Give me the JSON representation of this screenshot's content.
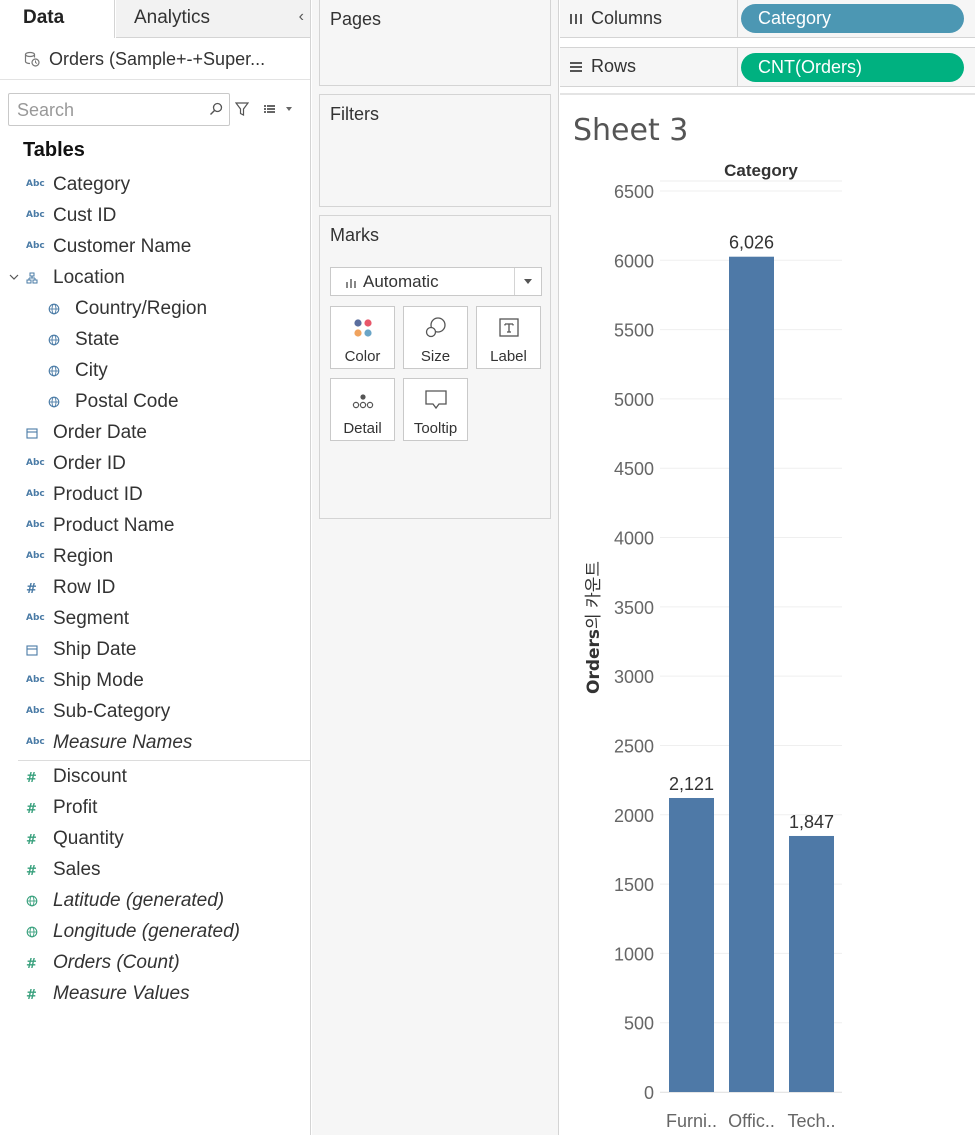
{
  "tabs": {
    "data": "Data",
    "analytics": "Analytics"
  },
  "datasource": {
    "label": "Orders (Sample+-+Super..."
  },
  "search": {
    "placeholder": "Search"
  },
  "tables_heading": "Tables",
  "dimensions": [
    {
      "name": "Category",
      "type": "Abc",
      "indent": 0
    },
    {
      "name": "Cust ID",
      "type": "Abc",
      "indent": 0
    },
    {
      "name": "Customer Name",
      "type": "Abc",
      "indent": 0
    },
    {
      "name": "Location",
      "type": "hierarchy",
      "indent": 0,
      "expanded": true
    },
    {
      "name": "Country/Region",
      "type": "geo",
      "indent": 1
    },
    {
      "name": "State",
      "type": "geo",
      "indent": 1
    },
    {
      "name": "City",
      "type": "geo",
      "indent": 1
    },
    {
      "name": "Postal Code",
      "type": "geo",
      "indent": 1
    },
    {
      "name": "Order Date",
      "type": "date",
      "indent": 0
    },
    {
      "name": "Order ID",
      "type": "Abc",
      "indent": 0
    },
    {
      "name": "Product ID",
      "type": "Abc",
      "indent": 0
    },
    {
      "name": "Product Name",
      "type": "Abc",
      "indent": 0
    },
    {
      "name": "Region",
      "type": "Abc",
      "indent": 0
    },
    {
      "name": "Row ID",
      "type": "number",
      "indent": 0
    },
    {
      "name": "Segment",
      "type": "Abc",
      "indent": 0
    },
    {
      "name": "Ship Date",
      "type": "date",
      "indent": 0
    },
    {
      "name": "Ship Mode",
      "type": "Abc",
      "indent": 0
    },
    {
      "name": "Sub-Category",
      "type": "Abc",
      "indent": 0
    },
    {
      "name": "Measure Names",
      "type": "Abc",
      "indent": 0,
      "italic": true
    }
  ],
  "measures": [
    {
      "name": "Discount",
      "type": "number"
    },
    {
      "name": "Profit",
      "type": "number"
    },
    {
      "name": "Quantity",
      "type": "number"
    },
    {
      "name": "Sales",
      "type": "number"
    },
    {
      "name": "Latitude (generated)",
      "type": "geo",
      "italic": true
    },
    {
      "name": "Longitude (generated)",
      "type": "geo",
      "italic": true
    },
    {
      "name": "Orders (Count)",
      "type": "number",
      "italic": true
    },
    {
      "name": "Measure Values",
      "type": "number",
      "italic": true
    }
  ],
  "cards": {
    "pages": "Pages",
    "filters": "Filters",
    "marks": "Marks",
    "mark_type": "Automatic",
    "mark_buttons": {
      "color": "Color",
      "size": "Size",
      "label": "Label",
      "detail": "Detail",
      "tooltip": "Tooltip"
    }
  },
  "shelves": {
    "columns_label": "Columns",
    "columns_pill": "Category",
    "rows_label": "Rows",
    "rows_pill": "CNT(Orders)"
  },
  "sheet_title": "Sheet 3",
  "colors": {
    "bar": "#4e79a7",
    "columns_pill": "#4c97b3",
    "rows_pill": "#00b180"
  },
  "chart_data": {
    "type": "bar",
    "title": "Category",
    "ylabel_bold": "Orders",
    "ylabel_rest": "의 카운트",
    "categories": [
      "Furni..",
      "Offic..",
      "Tech.."
    ],
    "values": [
      2121,
      6026,
      1847
    ],
    "value_labels": [
      "2,121",
      "6,026",
      "1,847"
    ],
    "yticks": [
      "6500",
      "6000",
      "5500",
      "5000",
      "4500",
      "4000",
      "3500",
      "3000",
      "2500",
      "2000",
      "1500",
      "1000",
      "500",
      "0"
    ],
    "ylim": [
      0,
      6500
    ],
    "grid": true
  }
}
